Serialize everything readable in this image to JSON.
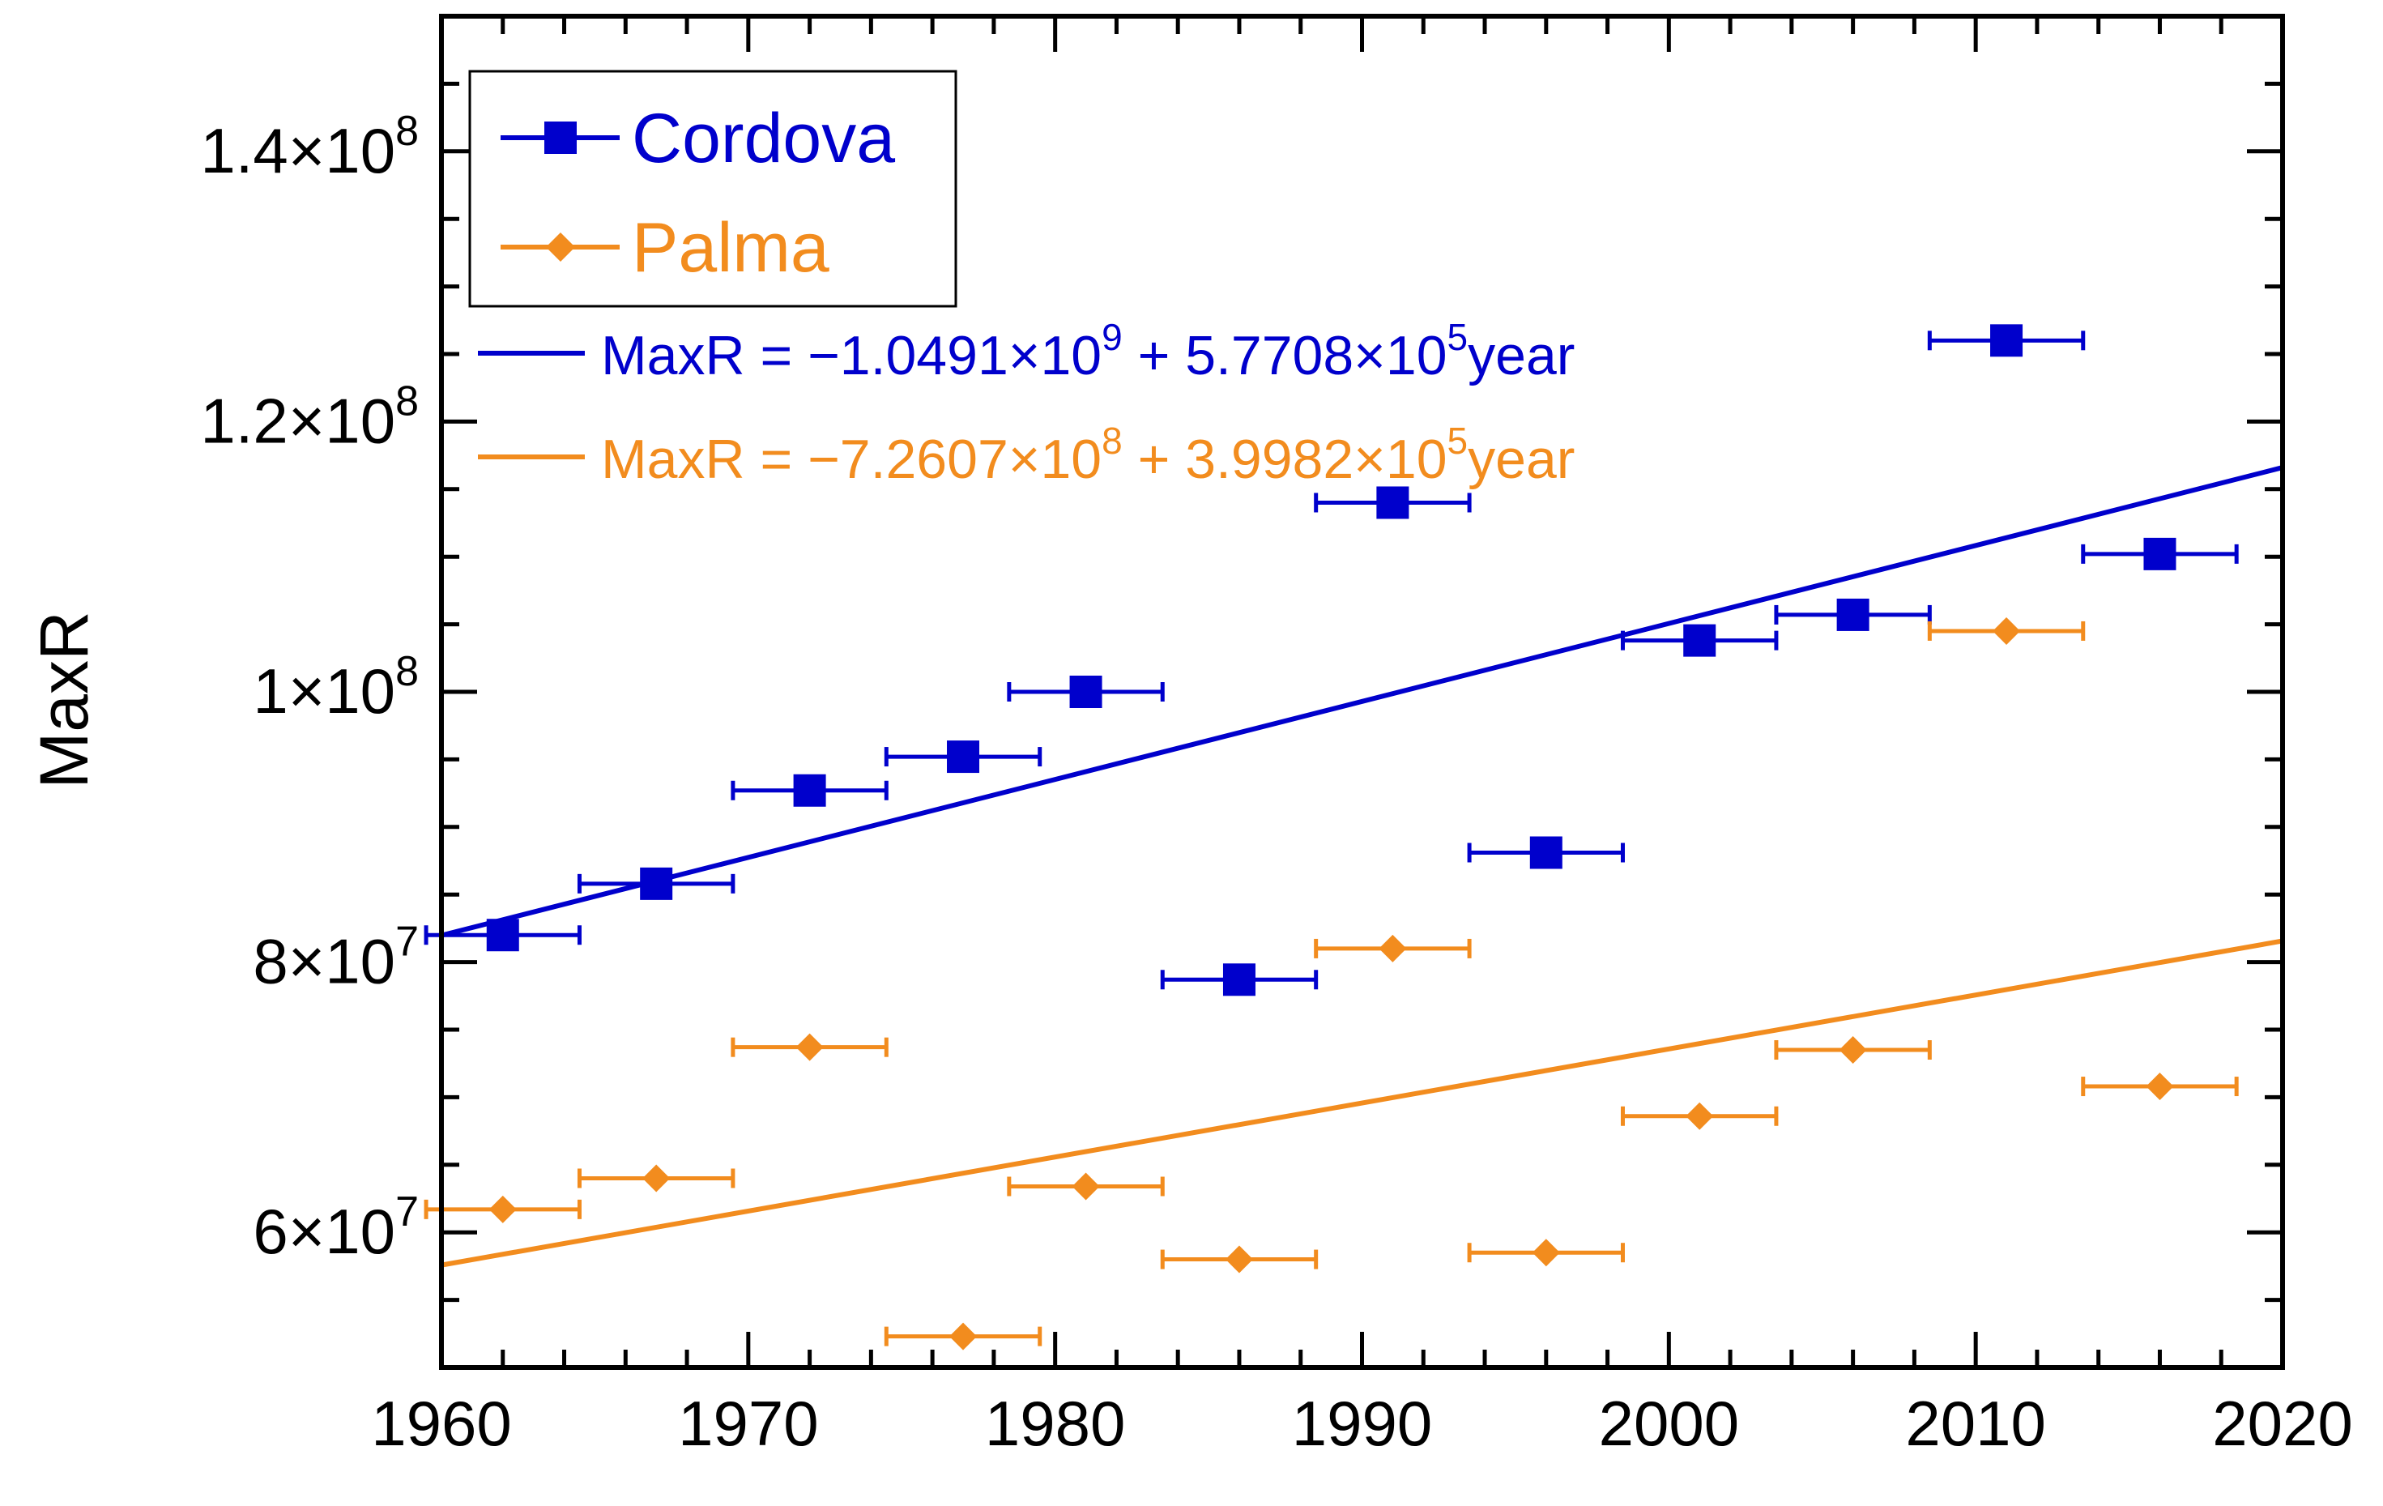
{
  "chart_data": {
    "type": "scatter",
    "title": "",
    "xlabel": "",
    "ylabel": "MaxR",
    "xlim": [
      1960,
      2020
    ],
    "ylim": [
      50000000,
      150000000
    ],
    "x_ticks": [
      1960,
      1970,
      1980,
      1990,
      2000,
      2010,
      2020
    ],
    "x_tick_labels": [
      "1960",
      "1970",
      "1980",
      "1990",
      "2000",
      "2010",
      "2020"
    ],
    "y_ticks": [
      60000000,
      80000000,
      100000000,
      120000000,
      140000000
    ],
    "y_tick_labels": [
      {
        "mantissa": "6×10",
        "exp": "7"
      },
      {
        "mantissa": "8×10",
        "exp": "7"
      },
      {
        "mantissa": "1×10",
        "exp": "8"
      },
      {
        "mantissa": "1.2×10",
        "exp": "8"
      },
      {
        "mantissa": "1.4×10",
        "exp": "8"
      }
    ],
    "x_error_halfwidth": 2.5,
    "legend": {
      "position": "top-left"
    },
    "series": [
      {
        "name": "Cordova",
        "marker": "square",
        "color": "#0000CC",
        "x": [
          1962,
          1967,
          1972,
          1977,
          1981,
          1986,
          1991,
          1996,
          2001,
          2006,
          2011,
          2016
        ],
        "y": [
          82000000,
          85800000,
          92700000,
          95200000,
          100000000,
          78700000,
          114000000,
          88100000,
          103800000,
          105700000,
          126000000,
          110200000
        ]
      },
      {
        "name": "Palma",
        "marker": "diamond",
        "color": "#F28C1E",
        "x": [
          1962,
          1967,
          1972,
          1977,
          1981,
          1986,
          1991,
          1996,
          2001,
          2006,
          2011,
          2016
        ],
        "y": [
          61700000,
          64000000,
          73700000,
          52300000,
          63400000,
          58000000,
          81000000,
          58500000,
          68600000,
          73500000,
          104500000,
          70800000
        ]
      }
    ],
    "fits": [
      {
        "series": "Cordova",
        "color": "#0000CC",
        "intercept": -1049100000,
        "slope": 577080,
        "label_parts": [
          "MaxR = −1.0491×10",
          "9",
          " + 5.7708×10",
          "5",
          "year"
        ]
      },
      {
        "series": "Palma",
        "color": "#F28C1E",
        "intercept": -726070000,
        "slope": 399820,
        "label_parts": [
          "MaxR = −7.2607×10",
          "8",
          " + 3.9982×10",
          "5",
          "year"
        ]
      }
    ]
  }
}
